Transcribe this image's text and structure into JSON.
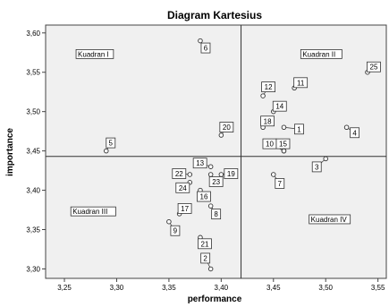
{
  "chart_data": {
    "type": "scatter",
    "title": "Diagram Kartesius",
    "xlabel": "performance",
    "ylabel": "importance",
    "xlim": [
      3.232,
      3.558
    ],
    "ylim": [
      3.288,
      3.61
    ],
    "x_ticks": [
      "3,25",
      "3,30",
      "3,35",
      "3,40",
      "3,45",
      "3,50",
      "3,55"
    ],
    "y_ticks": [
      "3,30",
      "3,35",
      "3,40",
      "3,45",
      "3,50",
      "3,55",
      "3,60"
    ],
    "reference_lines": {
      "x": 3.419,
      "y": 3.443
    },
    "quadrants": [
      "Kuadran I",
      "Kuadran II",
      "Kuadran III",
      "Kuadran IV"
    ],
    "points": [
      {
        "label": "1",
        "x": 3.46,
        "y": 3.48
      },
      {
        "label": "2",
        "x": 3.39,
        "y": 3.3
      },
      {
        "label": "3",
        "x": 3.5,
        "y": 3.44
      },
      {
        "label": "4",
        "x": 3.52,
        "y": 3.48
      },
      {
        "label": "5",
        "x": 3.29,
        "y": 3.45
      },
      {
        "label": "6",
        "x": 3.38,
        "y": 3.59
      },
      {
        "label": "7",
        "x": 3.45,
        "y": 3.42
      },
      {
        "label": "8",
        "x": 3.39,
        "y": 3.38
      },
      {
        "label": "9",
        "x": 3.35,
        "y": 3.36
      },
      {
        "label": "10",
        "x": 3.46,
        "y": 3.45
      },
      {
        "label": "11",
        "x": 3.47,
        "y": 3.53
      },
      {
        "label": "12",
        "x": 3.44,
        "y": 3.52
      },
      {
        "label": "13",
        "x": 3.39,
        "y": 3.43
      },
      {
        "label": "14",
        "x": 3.45,
        "y": 3.5
      },
      {
        "label": "15",
        "x": 3.46,
        "y": 3.45
      },
      {
        "label": "16",
        "x": 3.38,
        "y": 3.4
      },
      {
        "label": "17",
        "x": 3.36,
        "y": 3.37
      },
      {
        "label": "18",
        "x": 3.44,
        "y": 3.48
      },
      {
        "label": "19",
        "x": 3.4,
        "y": 3.42
      },
      {
        "label": "20",
        "x": 3.4,
        "y": 3.47
      },
      {
        "label": "21",
        "x": 3.38,
        "y": 3.34
      },
      {
        "label": "22",
        "x": 3.37,
        "y": 3.42
      },
      {
        "label": "23",
        "x": 3.39,
        "y": 3.42
      },
      {
        "label": "24",
        "x": 3.37,
        "y": 3.41
      },
      {
        "label": "25",
        "x": 3.54,
        "y": 3.55
      }
    ]
  }
}
